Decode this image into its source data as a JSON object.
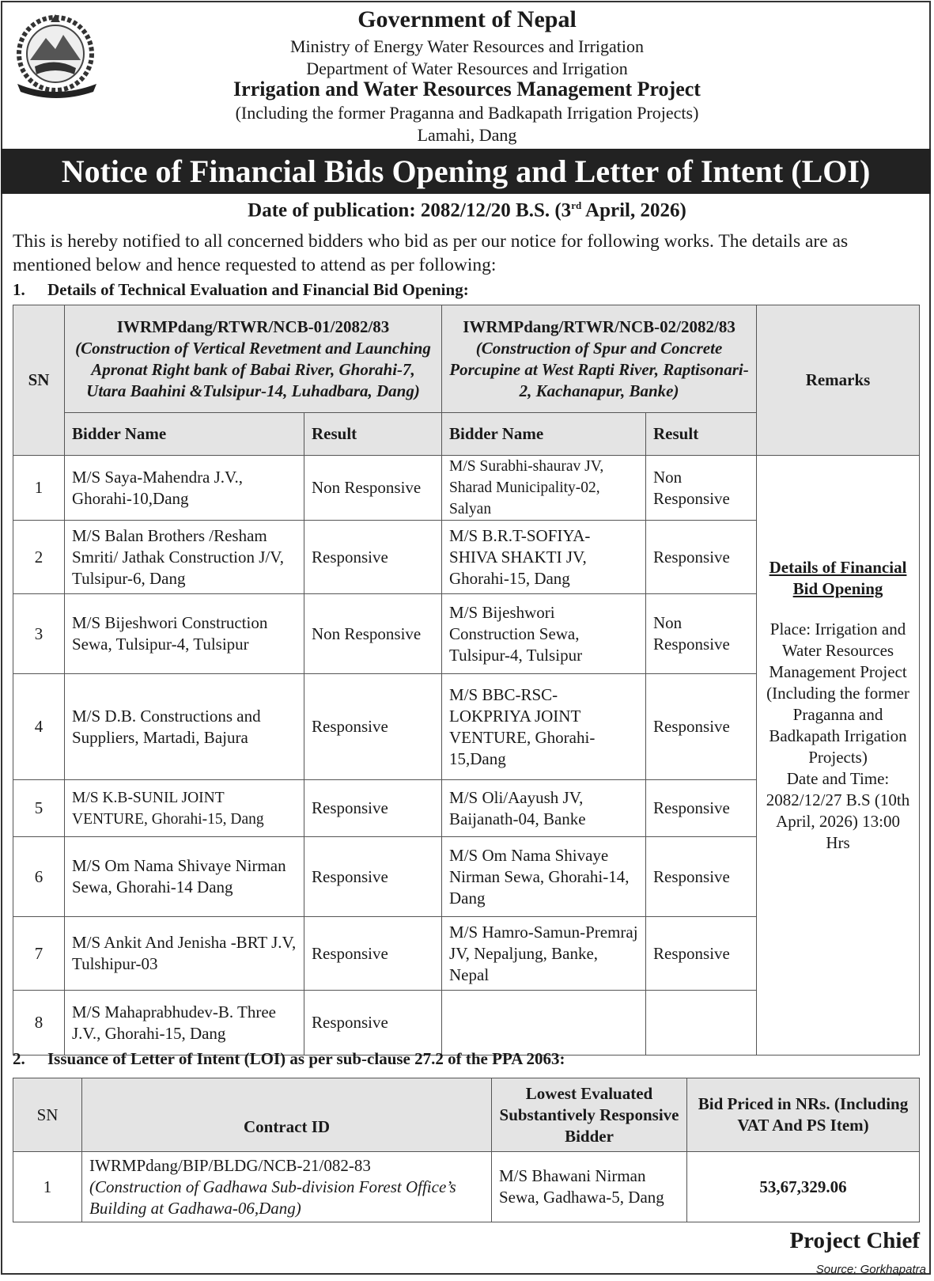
{
  "header": {
    "government": "Government of Nepal",
    "ministry": "Ministry of Energy Water Resources and Irrigation",
    "department": "Department of Water Resources and Irrigation",
    "project": "Irrigation and Water Resources Management Project",
    "project_note": "(Including the former Praganna and Badkapath Irrigation Projects)",
    "location": "Lamahi, Dang",
    "emblem": "nepal-government-emblem"
  },
  "title": "Notice of Financial Bids Opening and Letter of Intent (LOI)",
  "publication": {
    "prefix": "Date of publication: 2082/12/20 B.S. (3",
    "sup": "rd",
    "suffix": " April, 2026)"
  },
  "intro": "This is hereby notified to all concerned bidders who bid as per our notice for following works. The details are as mentioned below and hence requested to attend as per following:",
  "section1": {
    "number": "1.",
    "heading": "Details of Technical Evaluation and Financial Bid Opening:",
    "sn_header": "SN",
    "contract1": {
      "id": "IWRMPdang/RTWR/NCB-01/2082/83",
      "desc": "(Construction of Vertical Revetment and Launching Apronat Right bank of Babai River, Ghorahi-7, Utara Baahini &Tulsipur-14, Luhadbara, Dang)"
    },
    "contract2": {
      "id": "IWRMPdang/RTWR/NCB-02/2082/83",
      "desc": "(Construction of Spur and Concrete Porcupine at West Rapti River, Raptisonari-2, Kachanapur, Banke)"
    },
    "remarks_header": "Remarks",
    "bidder_header": "Bidder Name",
    "result_header": "Result",
    "rows": [
      {
        "sn": "1",
        "b1": "M/S Saya-Mahendra J.V., Ghorahi-10,Dang",
        "r1": "Non Responsive",
        "b2": "M/S Surabhi-shaurav JV, Sharad Municipality-02, Salyan",
        "r2": "Non Responsive"
      },
      {
        "sn": "2",
        "b1": "M/S Balan Brothers /Resham Smriti/ Jathak Construction J/V, Tulsipur-6, Dang",
        "r1": "Responsive",
        "b2": "M/S B.R.T-SOFIYA-SHIVA SHAKTI JV, Ghorahi-15, Dang",
        "r2": "Responsive"
      },
      {
        "sn": "3",
        "b1": "M/S Bijeshwori Construction Sewa, Tulsipur-4, Tulsipur",
        "r1": "Non Responsive",
        "b2": "M/S Bijeshwori Construction Sewa, Tulsipur-4, Tulsipur",
        "r2": "Non Responsive"
      },
      {
        "sn": "4",
        "b1": "M/S D.B. Constructions and Suppliers, Martadi, Bajura",
        "r1": "Responsive",
        "b2": "M/S BBC-RSC-LOKPRIYA JOINT VENTURE, Ghorahi-15,Dang",
        "r2": "Responsive"
      },
      {
        "sn": "5",
        "b1": "M/S K.B-SUNIL JOINT VENTURE, Ghorahi-15, Dang",
        "r1": "Responsive",
        "b2": "M/S Oli/Aayush JV, Baijanath-04, Banke",
        "r2": "Responsive"
      },
      {
        "sn": "6",
        "b1": "M/S Om Nama Shivaye Nirman Sewa, Ghorahi-14 Dang",
        "r1": "Responsive",
        "b2": "M/S Om Nama Shivaye Nirman Sewa, Ghorahi-14, Dang",
        "r2": "Responsive"
      },
      {
        "sn": "7",
        "b1": "M/S Ankit And Jenisha -BRT J.V, Tulshipur-03",
        "r1": "Responsive",
        "b2": "M/S Hamro-Samun-Premraj JV, Nepaljung, Banke, Nepal",
        "r2": "Responsive"
      },
      {
        "sn": "8",
        "b1": "M/S Mahaprabhudev-B. Three J.V., Ghorahi-15, Dang",
        "r1": "Responsive",
        "b2": "",
        "r2": ""
      }
    ],
    "remarks": {
      "heading": "Details of Financial Bid Opening",
      "place": "Place: Irrigation and Water Resources Management Project (Including the former Praganna and Badkapath Irrigation Projects)",
      "datetime": "Date and Time: 2082/12/27 B.S (10th April, 2026) 13:00 Hrs"
    }
  },
  "section2": {
    "number": "2.",
    "heading": "Issuance of Letter of Intent (LOI) as per sub-clause 27.2 of the PPA 2063:",
    "headers": {
      "sn": "SN",
      "contract": "Contract ID",
      "bidder": "Lowest Evaluated Substantively Responsive Bidder",
      "price": "Bid Priced in NRs. (Including VAT And PS Item)"
    },
    "rows": [
      {
        "sn": "1",
        "contract_id": "IWRMPdang/BIP/BLDG/NCB-21/082-83",
        "contract_desc": "(Construction of Gadhawa Sub-division Forest Office’s Building at Gadhawa-06,Dang)",
        "bidder": "M/S Bhawani Nirman Sewa, Gadhawa-5, Dang",
        "price": "53,67,329.06"
      }
    ]
  },
  "signature": "Project Chief",
  "source": "Source: Gorkhapatra"
}
